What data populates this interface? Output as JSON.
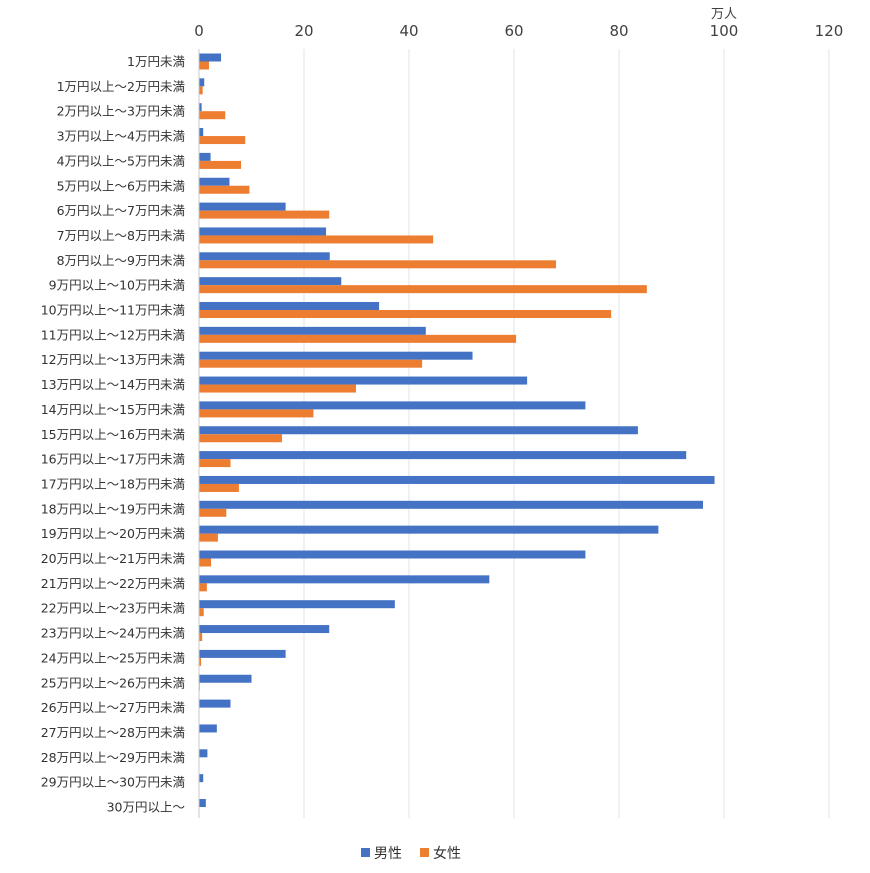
{
  "chart_data": {
    "type": "bar",
    "orientation": "horizontal",
    "title": "",
    "unit_label": "万人",
    "xlim": [
      0,
      120
    ],
    "x_ticks": [
      0,
      20,
      40,
      60,
      80,
      100,
      120
    ],
    "x_tick_labels": [
      "0",
      "20",
      "40",
      "60",
      "80",
      "100",
      "120"
    ],
    "grid": true,
    "legend_position": "bottom",
    "categories": [
      "1万円未満",
      "1万円以上～2万円未満",
      "2万円以上～3万円未満",
      "3万円以上～4万円未満",
      "4万円以上～5万円未満",
      "5万円以上～6万円未満",
      "6万円以上～7万円未満",
      "7万円以上～8万円未満",
      "8万円以上～9万円未満",
      "9万円以上～10万円未満",
      "10万円以上～11万円未満",
      "11万円以上～12万円未満",
      "12万円以上～13万円未満",
      "13万円以上～14万円未満",
      "14万円以上～15万円未満",
      "15万円以上～16万円未満",
      "16万円以上～17万円未満",
      "17万円以上～18万円未満",
      "18万円以上～19万円未満",
      "19万円以上～20万円未満",
      "20万円以上～21万円未満",
      "21万円以上～22万円未満",
      "22万円以上～23万円未満",
      "23万円以上～24万円未満",
      "24万円以上～25万円未満",
      "25万円以上～26万円未満",
      "26万円以上～27万円未満",
      "27万円以上～28万円未満",
      "28万円以上～29万円未満",
      "29万円以上～30万円未満",
      "30万円以上～"
    ],
    "series": [
      {
        "name": "男性",
        "color": "#4472C4",
        "values": [
          4.2,
          1.0,
          0.5,
          0.8,
          2.2,
          5.8,
          16.5,
          24.2,
          24.9,
          27.1,
          34.3,
          43.2,
          52.1,
          62.5,
          73.6,
          83.6,
          92.8,
          98.2,
          96.0,
          87.5,
          73.6,
          55.3,
          37.3,
          24.8,
          16.5,
          10.0,
          6.0,
          3.4,
          1.6,
          0.8,
          1.3
        ]
      },
      {
        "name": "女性",
        "color": "#ED7D31",
        "values": [
          1.9,
          0.7,
          5.0,
          8.8,
          8.0,
          9.6,
          24.8,
          44.6,
          68.0,
          85.3,
          78.5,
          60.4,
          42.5,
          29.9,
          21.8,
          15.8,
          6.0,
          7.6,
          5.2,
          3.6,
          2.3,
          1.5,
          0.9,
          0.6,
          0.4,
          0.15,
          0,
          0,
          0,
          0,
          0
        ]
      }
    ]
  }
}
